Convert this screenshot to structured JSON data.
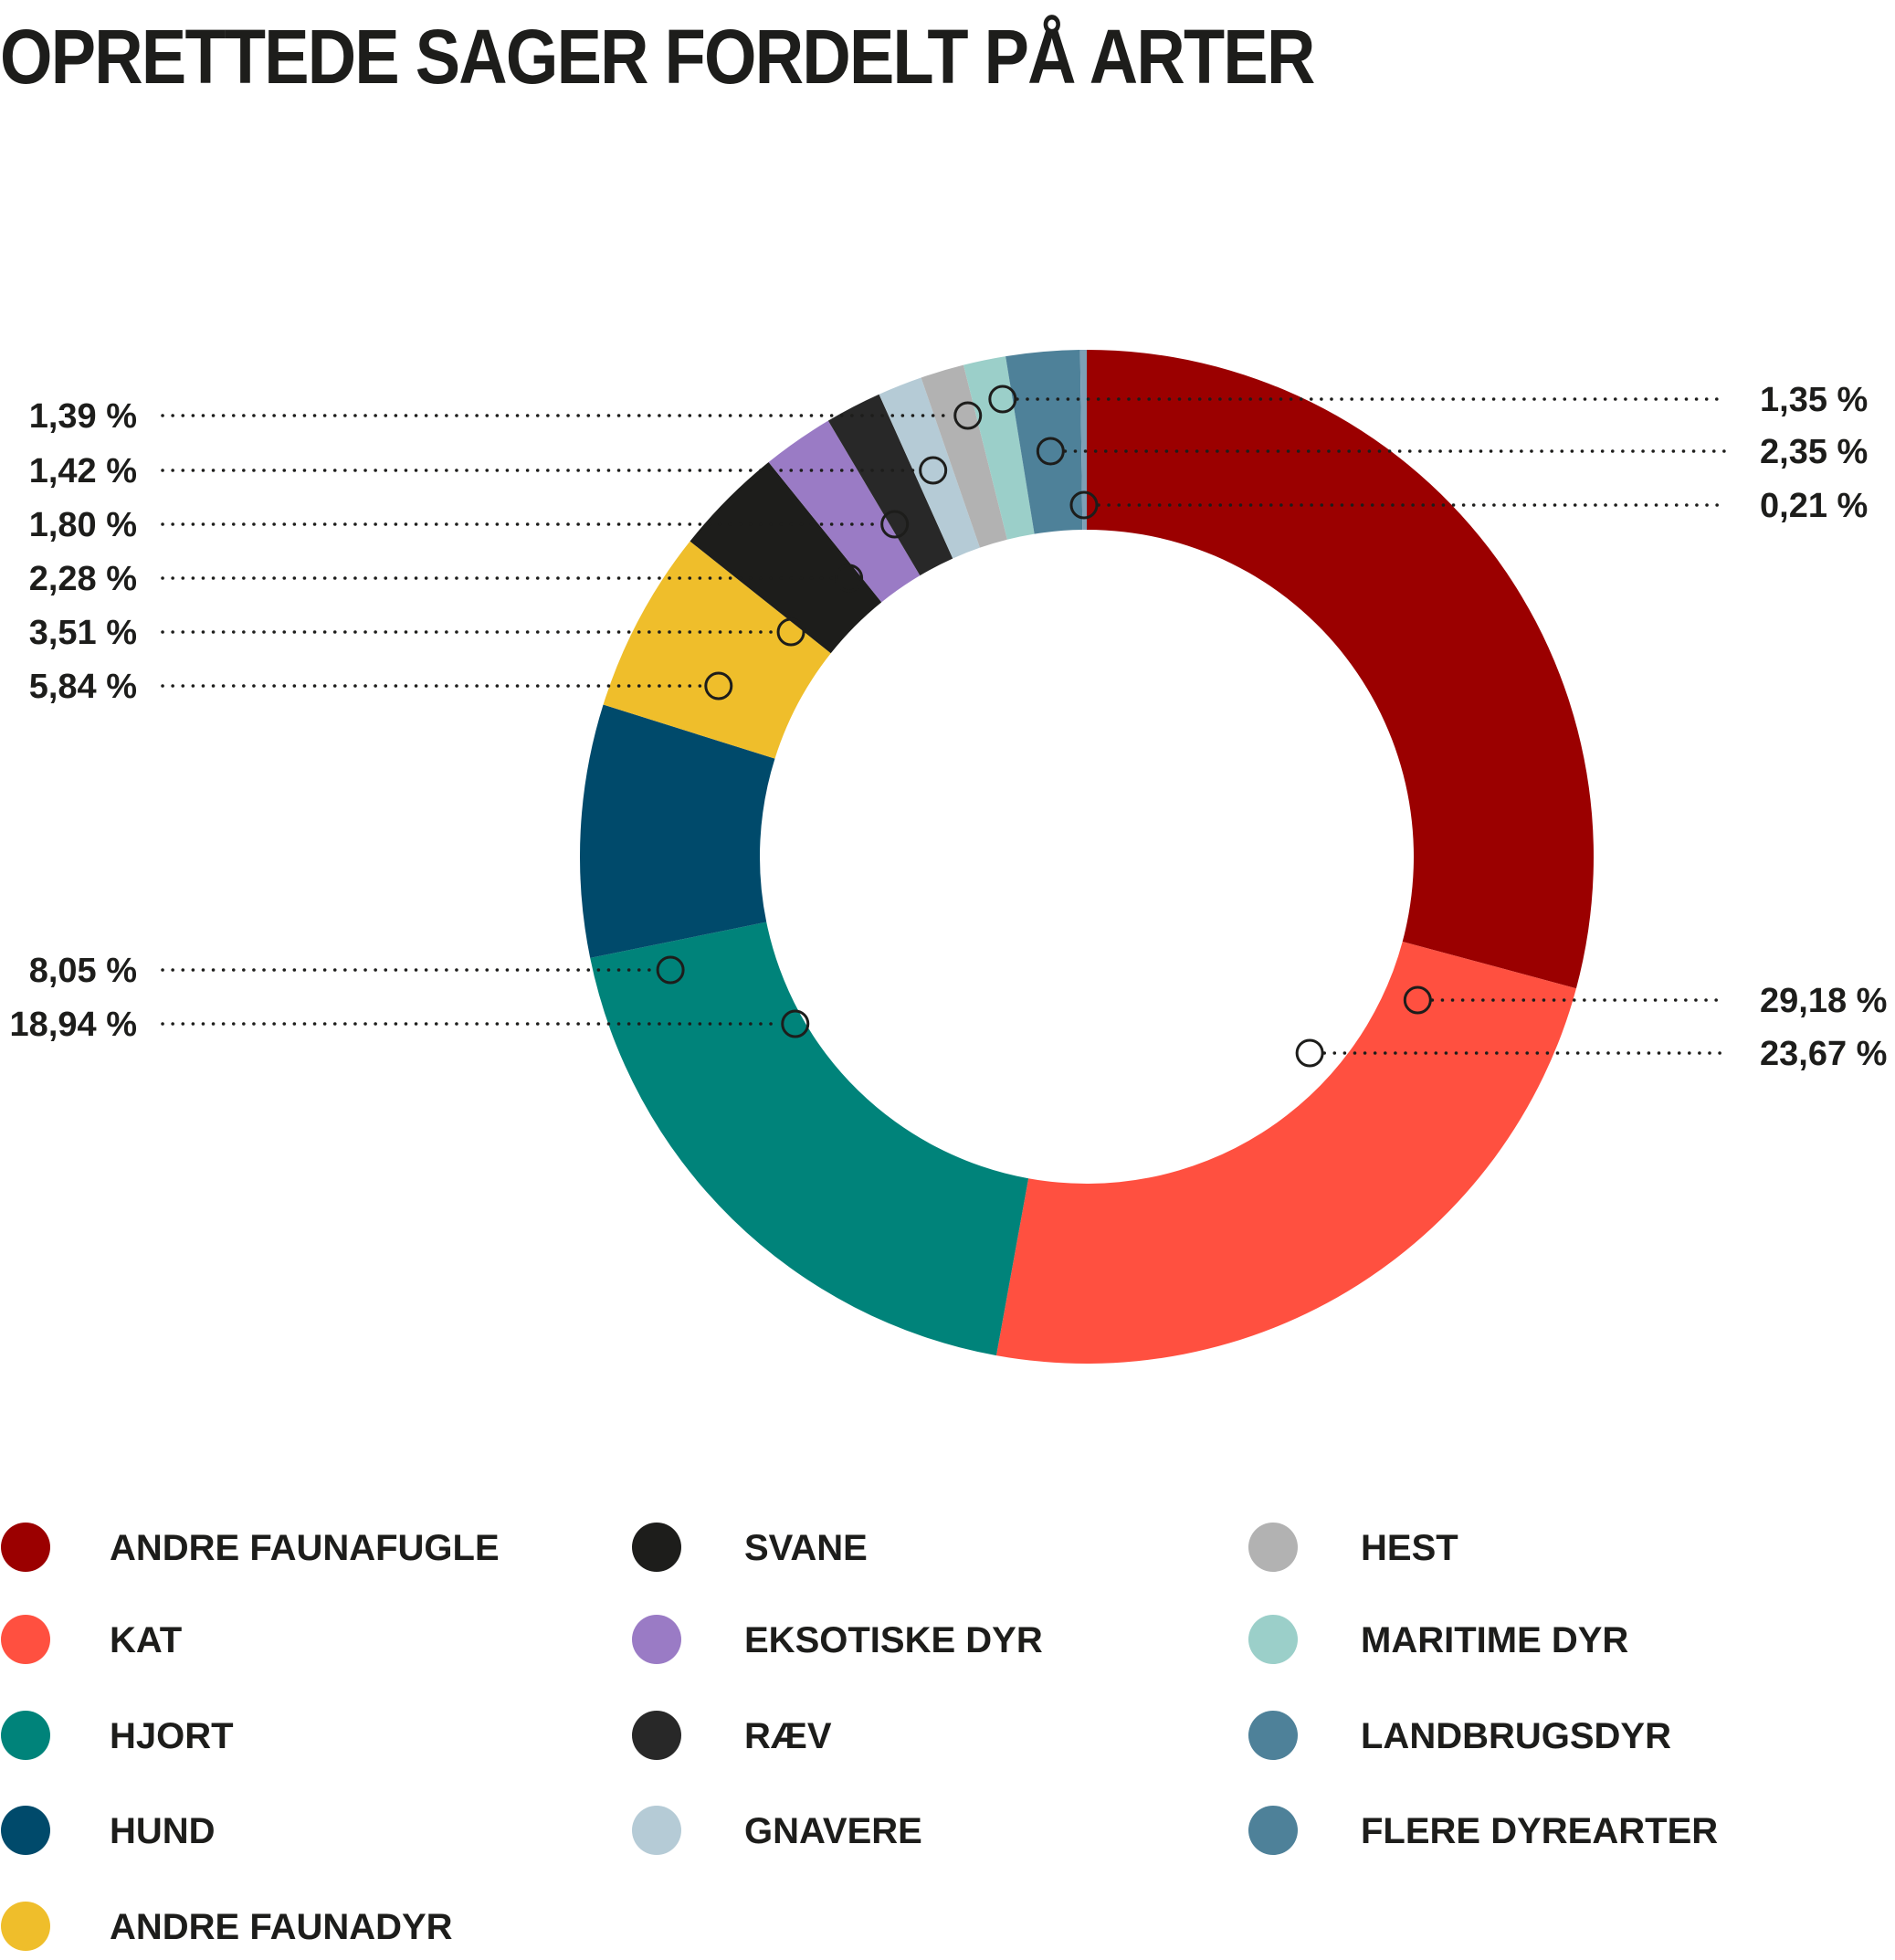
{
  "title": "OPRETTEDE SAGER FORDELT PÅ ARTER",
  "chart_data": {
    "type": "pie",
    "variant": "donut",
    "title": "OPRETTEDE SAGER FORDELT PÅ ARTER",
    "slices": [
      {
        "name": "ANDRE FAUNAFUGLE",
        "value": 29.18,
        "label": "29,18 %",
        "color": "#9b0000"
      },
      {
        "name": "KAT",
        "value": 23.67,
        "label": "23,67 %",
        "color": "#ff5040"
      },
      {
        "name": "HJORT",
        "value": 18.94,
        "label": "18,94 %",
        "color": "#00837a"
      },
      {
        "name": "HUND",
        "value": 8.05,
        "label": "8,05 %",
        "color": "#004a6b"
      },
      {
        "name": "ANDRE FAUNADYR",
        "value": 5.84,
        "label": "5,84 %",
        "color": "#efbe2b"
      },
      {
        "name": "SVANE",
        "value": 3.51,
        "label": "3,51 %",
        "color": "#1d1d1b"
      },
      {
        "name": "EKSOTISKE DYR",
        "value": 2.28,
        "label": "2,28 %",
        "color": "#9a7bc5"
      },
      {
        "name": "RÆV",
        "value": 1.8,
        "label": "1,80 %",
        "color": "#282828"
      },
      {
        "name": "GNAVERE",
        "value": 1.42,
        "label": "1,42 %",
        "color": "#b5cbd6"
      },
      {
        "name": "HEST",
        "value": 1.39,
        "label": "1,39 %",
        "color": "#b2b2b2"
      },
      {
        "name": "MARITIME DYR",
        "value": 1.35,
        "label": "1,35 %",
        "color": "#9bcfc9"
      },
      {
        "name": "LANDBRUGSDYR",
        "value": 2.35,
        "label": "2,35 %",
        "color": "#4e8199"
      },
      {
        "name": "FLERE DYREARTER",
        "value": 0.21,
        "label": "0,21 %",
        "color": "#7d9fb6"
      }
    ],
    "legend_placement": "bottom",
    "legend": [
      {
        "name": "ANDRE FAUNAFUGLE",
        "color": "#9b0000"
      },
      {
        "name": "KAT",
        "color": "#ff5040"
      },
      {
        "name": "HJORT",
        "color": "#00837a"
      },
      {
        "name": "HUND",
        "color": "#004a6b"
      },
      {
        "name": "ANDRE FAUNADYR",
        "color": "#efbe2b"
      },
      {
        "name": "SVANE",
        "color": "#1d1d1b"
      },
      {
        "name": "EKSOTISKE DYR",
        "color": "#9a7bc5"
      },
      {
        "name": "RÆV",
        "color": "#282828"
      },
      {
        "name": "GNAVERE",
        "color": "#b5cbd6"
      },
      {
        "name": "HEST",
        "color": "#b2b2b2"
      },
      {
        "name": "MARITIME DYR",
        "color": "#9bcfc9"
      },
      {
        "name": "LANDBRUGSDYR",
        "color": "#4e8199"
      },
      {
        "name": "FLERE DYREARTER",
        "color": "#4e8199"
      }
    ]
  }
}
